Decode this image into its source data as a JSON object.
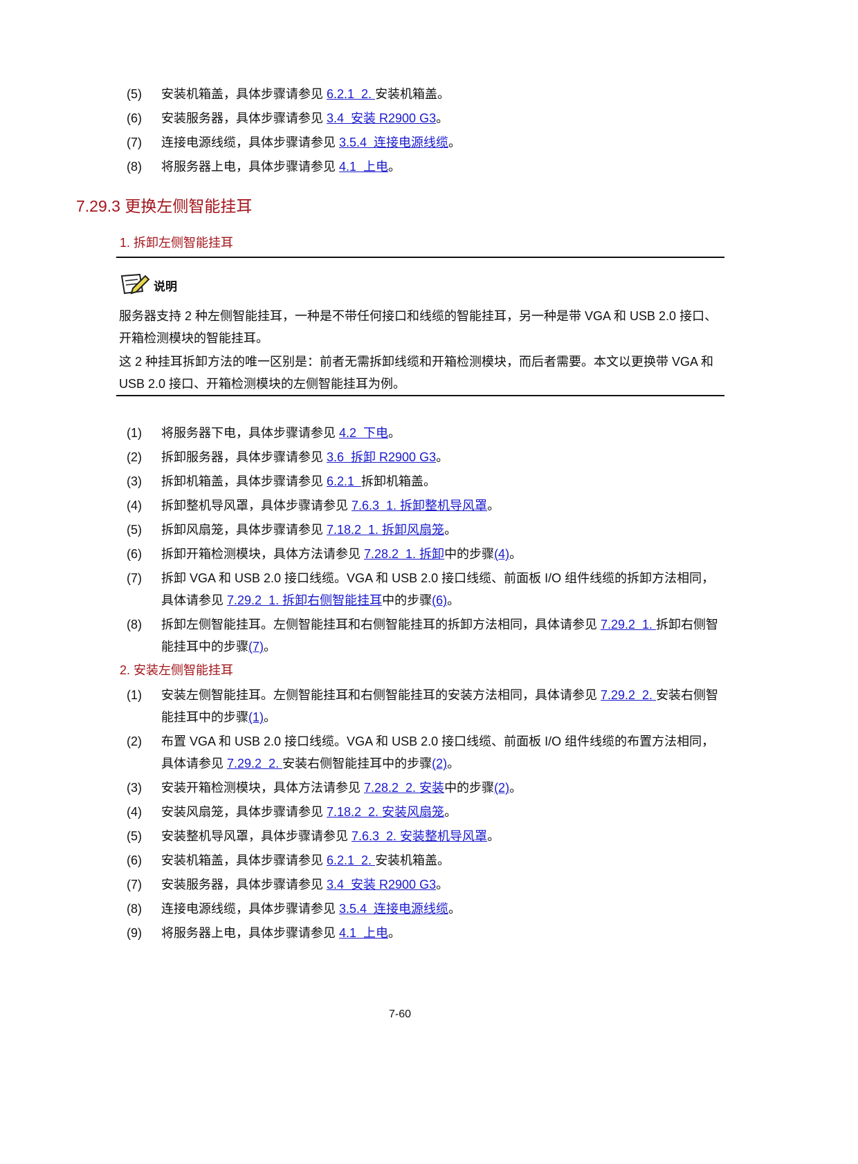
{
  "steps_before": [
    {
      "number": "(5)",
      "parts": [
        "安装机箱盖，具体步骤请参见 ",
        "6.2.1  2. ",
        "安装机箱盖。"
      ]
    },
    {
      "number": "(6)",
      "parts": [
        "安装服务器，具体步骤请参见 ",
        "3.4  安装 R2900 G3",
        "。"
      ]
    },
    {
      "number": "(7)",
      "parts": [
        "连接电源线缆，具体步骤请参见 ",
        "3.5.4  连接电源线缆",
        "。"
      ]
    },
    {
      "number": "(8)",
      "parts": [
        "将服务器上电，具体步骤请参见 ",
        "4.1  上电",
        "。"
      ]
    }
  ],
  "section_heading": "7.29.3  更换左侧智能挂耳",
  "remove": {
    "heading": "1. 拆卸左侧智能挂耳",
    "note": {
      "label": "说明",
      "paragraphs": [
        "服务器支持 2 种左侧智能挂耳，一种是不带任何接口和线缆的智能挂耳，另一种是带 VGA 和 USB 2.0 接口、开箱检测模块的智能挂耳。",
        "这 2 种挂耳拆卸方法的唯一区别是：前者无需拆卸线缆和开箱检测模块，而后者需要。本文以更换带 VGA 和 USB 2.0 接口、开箱检测模块的左侧智能挂耳为例。"
      ]
    },
    "steps": [
      {
        "number": "(1)",
        "parts": [
          "将服务器下电，具体步骤请参见 ",
          "4.2  下电",
          "。"
        ]
      },
      {
        "number": "(2)",
        "parts": [
          "拆卸服务器，具体步骤请参见 ",
          "3.6  拆卸 R2900 G3",
          "。"
        ]
      },
      {
        "number": "(3)",
        "parts": [
          "拆卸机箱盖，具体步骤请参见 ",
          "6.2.1  ",
          "拆卸机箱盖。"
        ]
      },
      {
        "number": "(4)",
        "parts": [
          "拆卸整机导风罩，具体步骤请参见 ",
          "7.6.3  1. 拆卸整机导风罩",
          "。"
        ]
      },
      {
        "number": "(5)",
        "parts": [
          "拆卸风扇笼，具体步骤请参见 ",
          "7.18.2  1. 拆卸风扇笼",
          "。"
        ]
      },
      {
        "number": "(6)",
        "parts": [
          "拆卸开箱检测模块，具体方法请参见 ",
          "7.28.2  1. 拆卸",
          "中的步骤",
          "(4)",
          "。"
        ]
      },
      {
        "number": "(7)",
        "parts": [
          "拆卸 VGA 和 USB 2.0 接口线缆。VGA 和 USB 2.0 接口线缆、前面板 I/O 组件线缆的拆卸方法相同，具体请参见 ",
          "7.29.2  1. 拆卸右侧智能挂耳",
          "中的步骤",
          "(6)",
          "。"
        ]
      },
      {
        "number": "(8)",
        "parts": [
          "拆卸左侧智能挂耳。左侧智能挂耳和右侧智能挂耳的拆卸方法相同，具体请参见 ",
          "7.29.2  1. ",
          "拆卸右侧智能挂耳中的步骤",
          "(7)",
          "。"
        ]
      }
    ]
  },
  "install": {
    "heading": "2. 安装左侧智能挂耳",
    "steps": [
      {
        "number": "(1)",
        "parts": [
          "安装左侧智能挂耳。左侧智能挂耳和右侧智能挂耳的安装方法相同，具体请参见 ",
          "7.29.2  2. ",
          "安装右侧智能挂耳中的步骤",
          "(1)",
          "。"
        ]
      },
      {
        "number": "(2)",
        "parts": [
          "布置 VGA 和 USB 2.0 接口线缆。VGA 和 USB 2.0 接口线缆、前面板 I/O 组件线缆的布置方法相同，具体请参见 ",
          "7.29.2  2. ",
          "安装右侧智能挂耳中的步骤",
          "(2)",
          "。"
        ]
      },
      {
        "number": "(3)",
        "parts": [
          "安装开箱检测模块，具体方法请参见 ",
          "7.28.2  2. 安装",
          "中的步骤",
          "(2)",
          "。"
        ]
      },
      {
        "number": "(4)",
        "parts": [
          "安装风扇笼，具体步骤请参见 ",
          "7.18.2  2. 安装风扇笼",
          "。"
        ]
      },
      {
        "number": "(5)",
        "parts": [
          "安装整机导风罩，具体步骤请参见 ",
          "7.6.3  2. 安装整机导风罩",
          "。"
        ]
      },
      {
        "number": "(6)",
        "parts": [
          "安装机箱盖，具体步骤请参见 ",
          "6.2.1  2. ",
          "安装机箱盖。"
        ]
      },
      {
        "number": "(7)",
        "parts": [
          "安装服务器，具体步骤请参见 ",
          "3.4  安装 R2900 G3",
          "。"
        ]
      },
      {
        "number": "(8)",
        "parts": [
          "连接电源线缆，具体步骤请参见 ",
          "3.5.4  连接电源线缆",
          "。"
        ]
      },
      {
        "number": "(9)",
        "parts": [
          "将服务器上电，具体步骤请参见 ",
          "4.1  上电",
          "。"
        ]
      }
    ]
  },
  "footer": {
    "page": "7-60"
  }
}
